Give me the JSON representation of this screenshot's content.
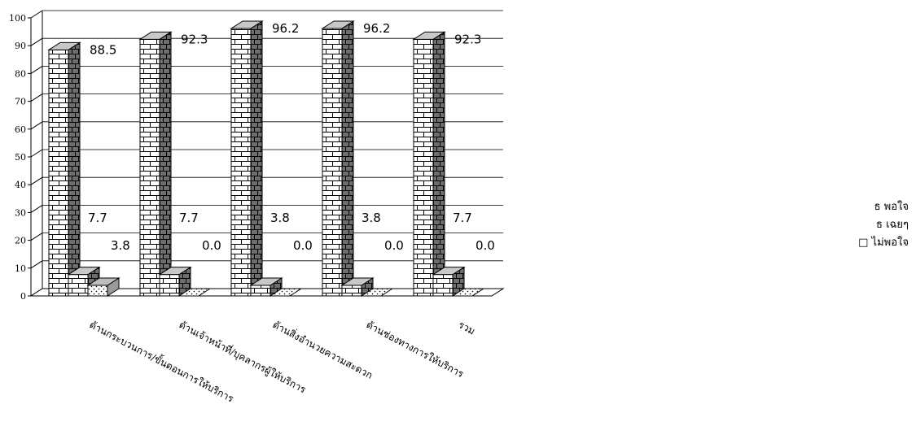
{
  "chart_data": {
    "type": "bar",
    "categories": [
      "ด้านกระบวนการ/ขั้นตอนการให้บริการ",
      "ด้านเจ้าหน้าที่/บุคลากรผู้ให้บริการ",
      "ด้านสิ่งอำนวยความสะดวก",
      "ด้านช่องทางการให้บริการ",
      "รวม"
    ],
    "series": [
      {
        "name": "ธ พอใจ",
        "values": [
          88.5,
          92.3,
          96.2,
          96.2,
          92.3
        ],
        "labels": [
          "88.5",
          "92.3",
          "96.2",
          "96.2",
          "92.3"
        ]
      },
      {
        "name": "ธ เฉยๆ",
        "values": [
          7.7,
          7.7,
          3.8,
          3.8,
          7.7
        ],
        "labels": [
          "7.7",
          "7.7",
          "3.8",
          "3.8",
          "7.7"
        ]
      },
      {
        "name": "□ ไม่พอใจ",
        "values": [
          3.8,
          0.0,
          0.0,
          0.0,
          0.0
        ],
        "labels": [
          "3.8",
          "0.0",
          "0.0",
          "0.0",
          "0.0"
        ]
      }
    ],
    "yticks": [
      "0",
      "10",
      "20",
      "30",
      "40",
      "50",
      "60",
      "70",
      "80",
      "90",
      "100"
    ],
    "ylim": [
      0,
      100
    ],
    "grid": true,
    "legend_position": "right",
    "style": "3d-bar-brick-pattern"
  }
}
